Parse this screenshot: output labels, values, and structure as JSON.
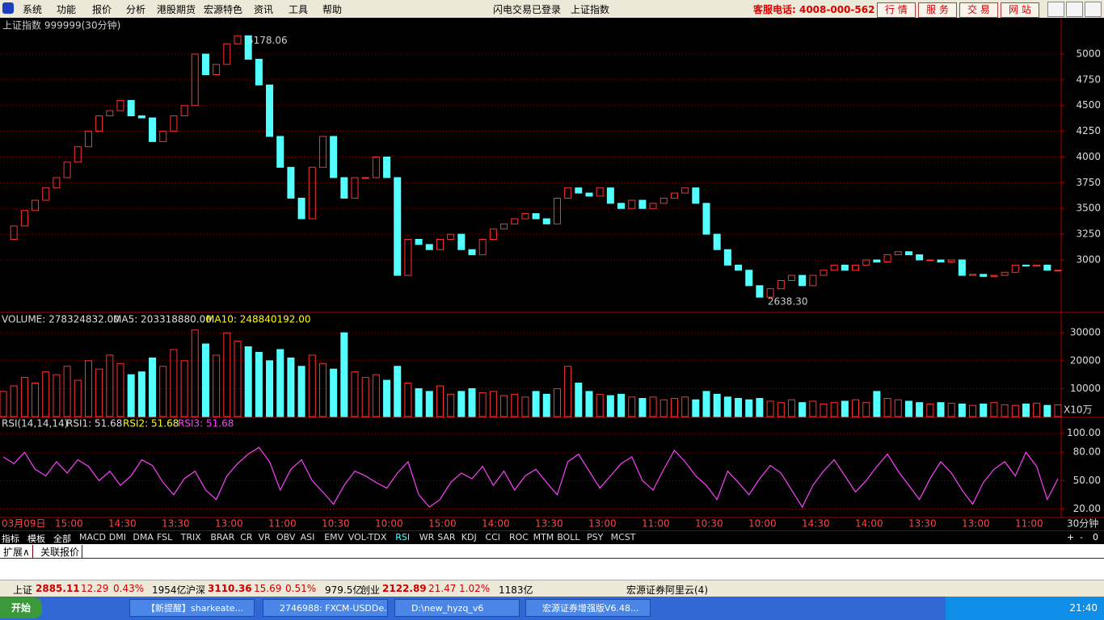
{
  "menu": [
    "系统",
    "功能",
    "报价",
    "分析",
    "港股期货",
    "宏源特色",
    "资讯",
    "工具",
    "帮助"
  ],
  "login_status": "闪电交易已登录",
  "current_index": "上证指数",
  "hotline": "客服电话: 4008-000-562",
  "top_buttons": [
    "行 情",
    "服 务",
    "交 易",
    "网 站"
  ],
  "chart_data": [
    {
      "type": "candle-line",
      "title": "上证指数 999999(30分钟)",
      "annotations": [
        "5178.06",
        "2638.30"
      ],
      "up_color": "#ff3232",
      "down_color": "#54ffff",
      "grid": true,
      "values": [
        3200,
        3330,
        3480,
        3580,
        3700,
        3800,
        3950,
        4100,
        4250,
        4400,
        4450,
        4550,
        4400,
        4380,
        4150,
        4250,
        4400,
        4500,
        5000,
        4800,
        4900,
        5100,
        5178.06,
        4950,
        4700,
        4200,
        3900,
        3600,
        3400,
        3900,
        4200,
        3800,
        3600,
        3800,
        3800,
        4000,
        3800,
        2850,
        3200,
        3150,
        3100,
        3200,
        3250,
        3100,
        3050,
        3200,
        3300,
        3350,
        3400,
        3450,
        3400,
        3350,
        3600,
        3700,
        3650,
        3620,
        3700,
        3550,
        3500,
        3580,
        3500,
        3550,
        3600,
        3650,
        3700,
        3550,
        3250,
        3100,
        2950,
        2900,
        2750,
        2638.3,
        2720,
        2800,
        2850,
        2750,
        2850,
        2900,
        2950,
        2900,
        2950,
        3000,
        2980,
        3050,
        3080,
        3050,
        3000,
        3000,
        2980,
        3000,
        2850,
        2860,
        2840,
        2850,
        2880,
        2950,
        2940,
        2950,
        2900,
        2900
      ],
      "ylim": [
        2490,
        5353
      ],
      "yticks": [
        3000,
        3250,
        3500,
        3750,
        4000,
        4250,
        4500,
        4750,
        5000
      ]
    },
    {
      "type": "volume",
      "header": [
        "VOLUME: 278324832.00",
        "MA5: 203318880.00",
        "MA10: 248840192.00"
      ],
      "unit": "X10万",
      "values": [
        9000,
        11000,
        14000,
        12000,
        16000,
        15000,
        18000,
        13000,
        20000,
        17000,
        22000,
        19000,
        15000,
        16000,
        21000,
        18000,
        24000,
        20000,
        31000,
        26000,
        22000,
        30000,
        27000,
        25000,
        23000,
        20000,
        24000,
        21000,
        18000,
        22000,
        19000,
        17000,
        30000,
        16000,
        14000,
        15000,
        13000,
        18000,
        12000,
        10000,
        9000,
        11000,
        8000,
        9000,
        10000,
        8500,
        9000,
        7500,
        8000,
        7000,
        9000,
        8000,
        10000,
        18000,
        12000,
        9000,
        8000,
        7500,
        8000,
        7000,
        6500,
        7000,
        6000,
        6500,
        7000,
        6000,
        9000,
        8000,
        7000,
        6500,
        6000,
        6500,
        5500,
        5000,
        6000,
        5000,
        5500,
        4500,
        5000,
        5500,
        6000,
        5000,
        9000,
        6500,
        6000,
        5500,
        5000,
        4500,
        5000,
        4800,
        4500,
        4000,
        4500,
        5000,
        4200,
        4000,
        4500,
        4800,
        4000,
        4200
      ],
      "ylim": [
        0,
        37000
      ],
      "yticks": [
        10000,
        20000,
        30000
      ]
    },
    {
      "type": "line",
      "header": [
        "RSI(14,14,14)",
        "RSI1: 51.68",
        "RSI2: 51.68",
        "RSI3: 51.68"
      ],
      "color": "#ff40ff",
      "values": [
        75,
        68,
        80,
        62,
        55,
        70,
        58,
        72,
        65,
        50,
        60,
        45,
        55,
        72,
        66,
        48,
        35,
        52,
        60,
        40,
        30,
        55,
        68,
        78,
        85,
        70,
        40,
        62,
        72,
        50,
        38,
        25,
        45,
        60,
        55,
        48,
        42,
        58,
        70,
        35,
        22,
        30,
        48,
        58,
        52,
        65,
        45,
        60,
        40,
        55,
        62,
        48,
        35,
        70,
        78,
        60,
        42,
        55,
        68,
        75,
        50,
        40,
        62,
        82,
        70,
        55,
        45,
        30,
        60,
        48,
        35,
        52,
        66,
        58,
        40,
        22,
        45,
        60,
        72,
        55,
        38,
        50,
        65,
        78,
        60,
        45,
        30,
        52,
        70,
        58,
        40,
        25,
        48,
        62,
        70,
        55,
        80,
        65,
        30,
        52
      ],
      "ylim": [
        11,
        116
      ],
      "yticks": [
        {
          "value": 20,
          "label": "20.00"
        },
        {
          "value": 50,
          "label": "50.00"
        },
        {
          "value": 80,
          "label": "80.00"
        },
        {
          "value": 100,
          "label": "100.00"
        }
      ]
    }
  ],
  "time_labels": [
    "03月09日",
    "15:00",
    "14:30",
    "13:30",
    "13:00",
    "11:00",
    "10:30",
    "10:00",
    "15:00",
    "14:00",
    "13:30",
    "13:00",
    "11:00",
    "10:30",
    "10:00",
    "14:30",
    "14:00",
    "13:30",
    "13:00",
    "11:00"
  ],
  "period": "30分钟",
  "tabs": [
    "指标",
    "模板",
    "全部",
    "MACD",
    "DMI",
    "DMA",
    "FSL",
    "TRIX",
    "BRAR",
    "CR",
    "VR",
    "OBV",
    "ASI",
    "EMV",
    "VOL-TDX",
    "RSI",
    "WR",
    "SAR",
    "KDJ",
    "CCI",
    "ROC",
    "MTM",
    "BOLL",
    "PSY",
    "MCST"
  ],
  "tab_controls": [
    "+",
    "-",
    "0"
  ],
  "ext_tabs": [
    "扩展∧",
    "关联报价"
  ],
  "status": [
    "上证",
    "2885.11",
    "12.29",
    "0.43%",
    "1954亿",
    "沪深",
    "3110.36",
    "15.69",
    "0.51%",
    "979.5亿",
    "创业",
    "2122.89",
    "21.47",
    "1.02%",
    "1183亿"
  ],
  "status_right": "宏源证券阿里云(4)",
  "taskbar": {
    "start": "开始",
    "tasks": [
      "【新提醒】sharkeate...",
      "2746988: FXCM-USDDe...",
      "D:\\new_hyzq_v6",
      "宏源证券增强版V6.48..."
    ],
    "clock": "21:40"
  }
}
